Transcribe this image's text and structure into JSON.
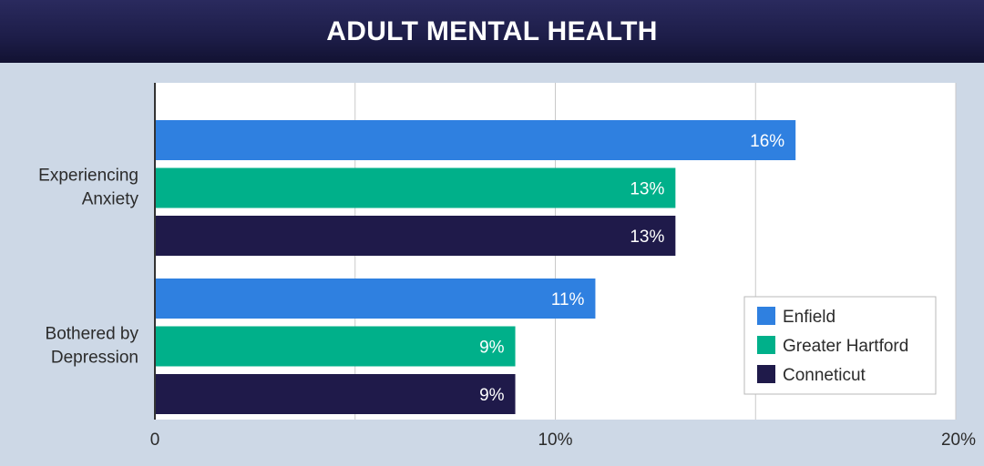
{
  "title": "ADULT MENTAL HEALTH",
  "chart_data": {
    "type": "bar",
    "orientation": "horizontal",
    "title": "ADULT MENTAL HEALTH",
    "categories": [
      "Experiencing Anxiety",
      "Bothered by Depression"
    ],
    "category_lines": [
      [
        "Experiencing",
        "Anxiety"
      ],
      [
        "Bothered by",
        "Depression"
      ]
    ],
    "series": [
      {
        "name": "Enfield",
        "values": [
          16,
          11
        ],
        "labels": [
          "16%",
          "11%"
        ],
        "color": "#2f80e0"
      },
      {
        "name": "Greater Hartford",
        "values": [
          13,
          9
        ],
        "labels": [
          "13%",
          "9%"
        ],
        "color": "#00b08a"
      },
      {
        "name": "Conneticut",
        "values": [
          13,
          9
        ],
        "labels": [
          "13%",
          "9%"
        ],
        "color": "#1f1a4a"
      }
    ],
    "xlim": [
      0,
      20
    ],
    "xticks": [
      0,
      10,
      20
    ],
    "xtick_labels": [
      "0",
      "10%",
      "20%"
    ],
    "grid": "vertical gridlines every 5",
    "legend": "bottom-right",
    "plot_background": "#ffffff",
    "page_background": "#cdd8e6"
  }
}
